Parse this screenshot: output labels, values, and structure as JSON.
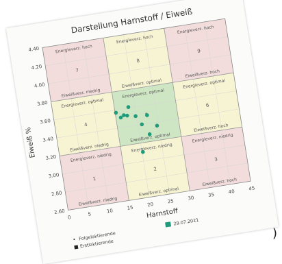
{
  "chart_data": {
    "type": "scatter",
    "title": "Darstellung Harnstoff / Eiweiß",
    "xlabel": "Harnstoff",
    "ylabel": "Eiweiß %",
    "xlim": [
      0,
      45
    ],
    "ylim": [
      2.6,
      4.4
    ],
    "x_ticks": [
      "0",
      "5",
      "10",
      "15",
      "20",
      "25",
      "30",
      "35",
      "40",
      "45"
    ],
    "y_ticks": [
      "2.60",
      "2.80",
      "3.00",
      "3.20",
      "3.40",
      "3.60",
      "3.80",
      "4.00",
      "4.20",
      "4.40"
    ],
    "x_bounds": [
      15,
      30
    ],
    "y_bounds": [
      3.2,
      3.8
    ],
    "cells": [
      {
        "n": "1",
        "top": "Energieverz. niedrig",
        "bottom": "Eiweißverz. niedrig",
        "color": "#f2dcdc"
      },
      {
        "n": "2",
        "top": "Energieverz. niedrig",
        "bottom": "Eiweißverz. optimal",
        "color": "#f7f4d3"
      },
      {
        "n": "3",
        "top": "Energieverz. niedrig",
        "bottom": "Eiweißverz. hoch",
        "color": "#f2dcdc"
      },
      {
        "n": "4",
        "top": "Energieverz. optimal",
        "bottom": "Eiweißverz. niedrig",
        "color": "#f7f4d3"
      },
      {
        "n": "5",
        "top": "Energieverz. optimal",
        "bottom": "Eiweißverz. optimal",
        "color": "#cfe6c4"
      },
      {
        "n": "6",
        "top": "Energieverz. optimal",
        "bottom": "Eiweißverz. hoch",
        "color": "#f7f4d3"
      },
      {
        "n": "7",
        "top": "Energieverz. hoch",
        "bottom": "Eiweißverz. niedrig",
        "color": "#f2dcdc"
      },
      {
        "n": "8",
        "top": "Energieverz. hoch",
        "bottom": "Eiweißverz. optimal",
        "color": "#f7f4d3"
      },
      {
        "n": "9",
        "top": "Energieverz. hoch",
        "bottom": "Eiweißverz. hoch",
        "color": "#f2dcdc"
      }
    ],
    "series": [
      {
        "name": "29.07.2021",
        "color": "#1f9a7a",
        "points": [
          [
            15.2,
            3.57
          ],
          [
            16.2,
            3.51
          ],
          [
            17.0,
            3.53
          ],
          [
            17.8,
            3.52
          ],
          [
            18.4,
            3.61
          ],
          [
            19.8,
            3.5
          ],
          [
            21.0,
            3.4
          ],
          [
            22.6,
            3.49
          ],
          [
            22.5,
            3.28
          ],
          [
            24.6,
            3.36
          ],
          [
            20.2,
            3.1
          ]
        ]
      }
    ],
    "grid": true,
    "legend": {
      "left": [
        {
          "marker": "•",
          "label": "Folgelaktierende"
        },
        {
          "marker": "■",
          "label": "Erstlaktierende"
        }
      ],
      "right": {
        "label": "29.07.2021"
      }
    }
  },
  "page": {
    "edge_glyph": ")"
  }
}
